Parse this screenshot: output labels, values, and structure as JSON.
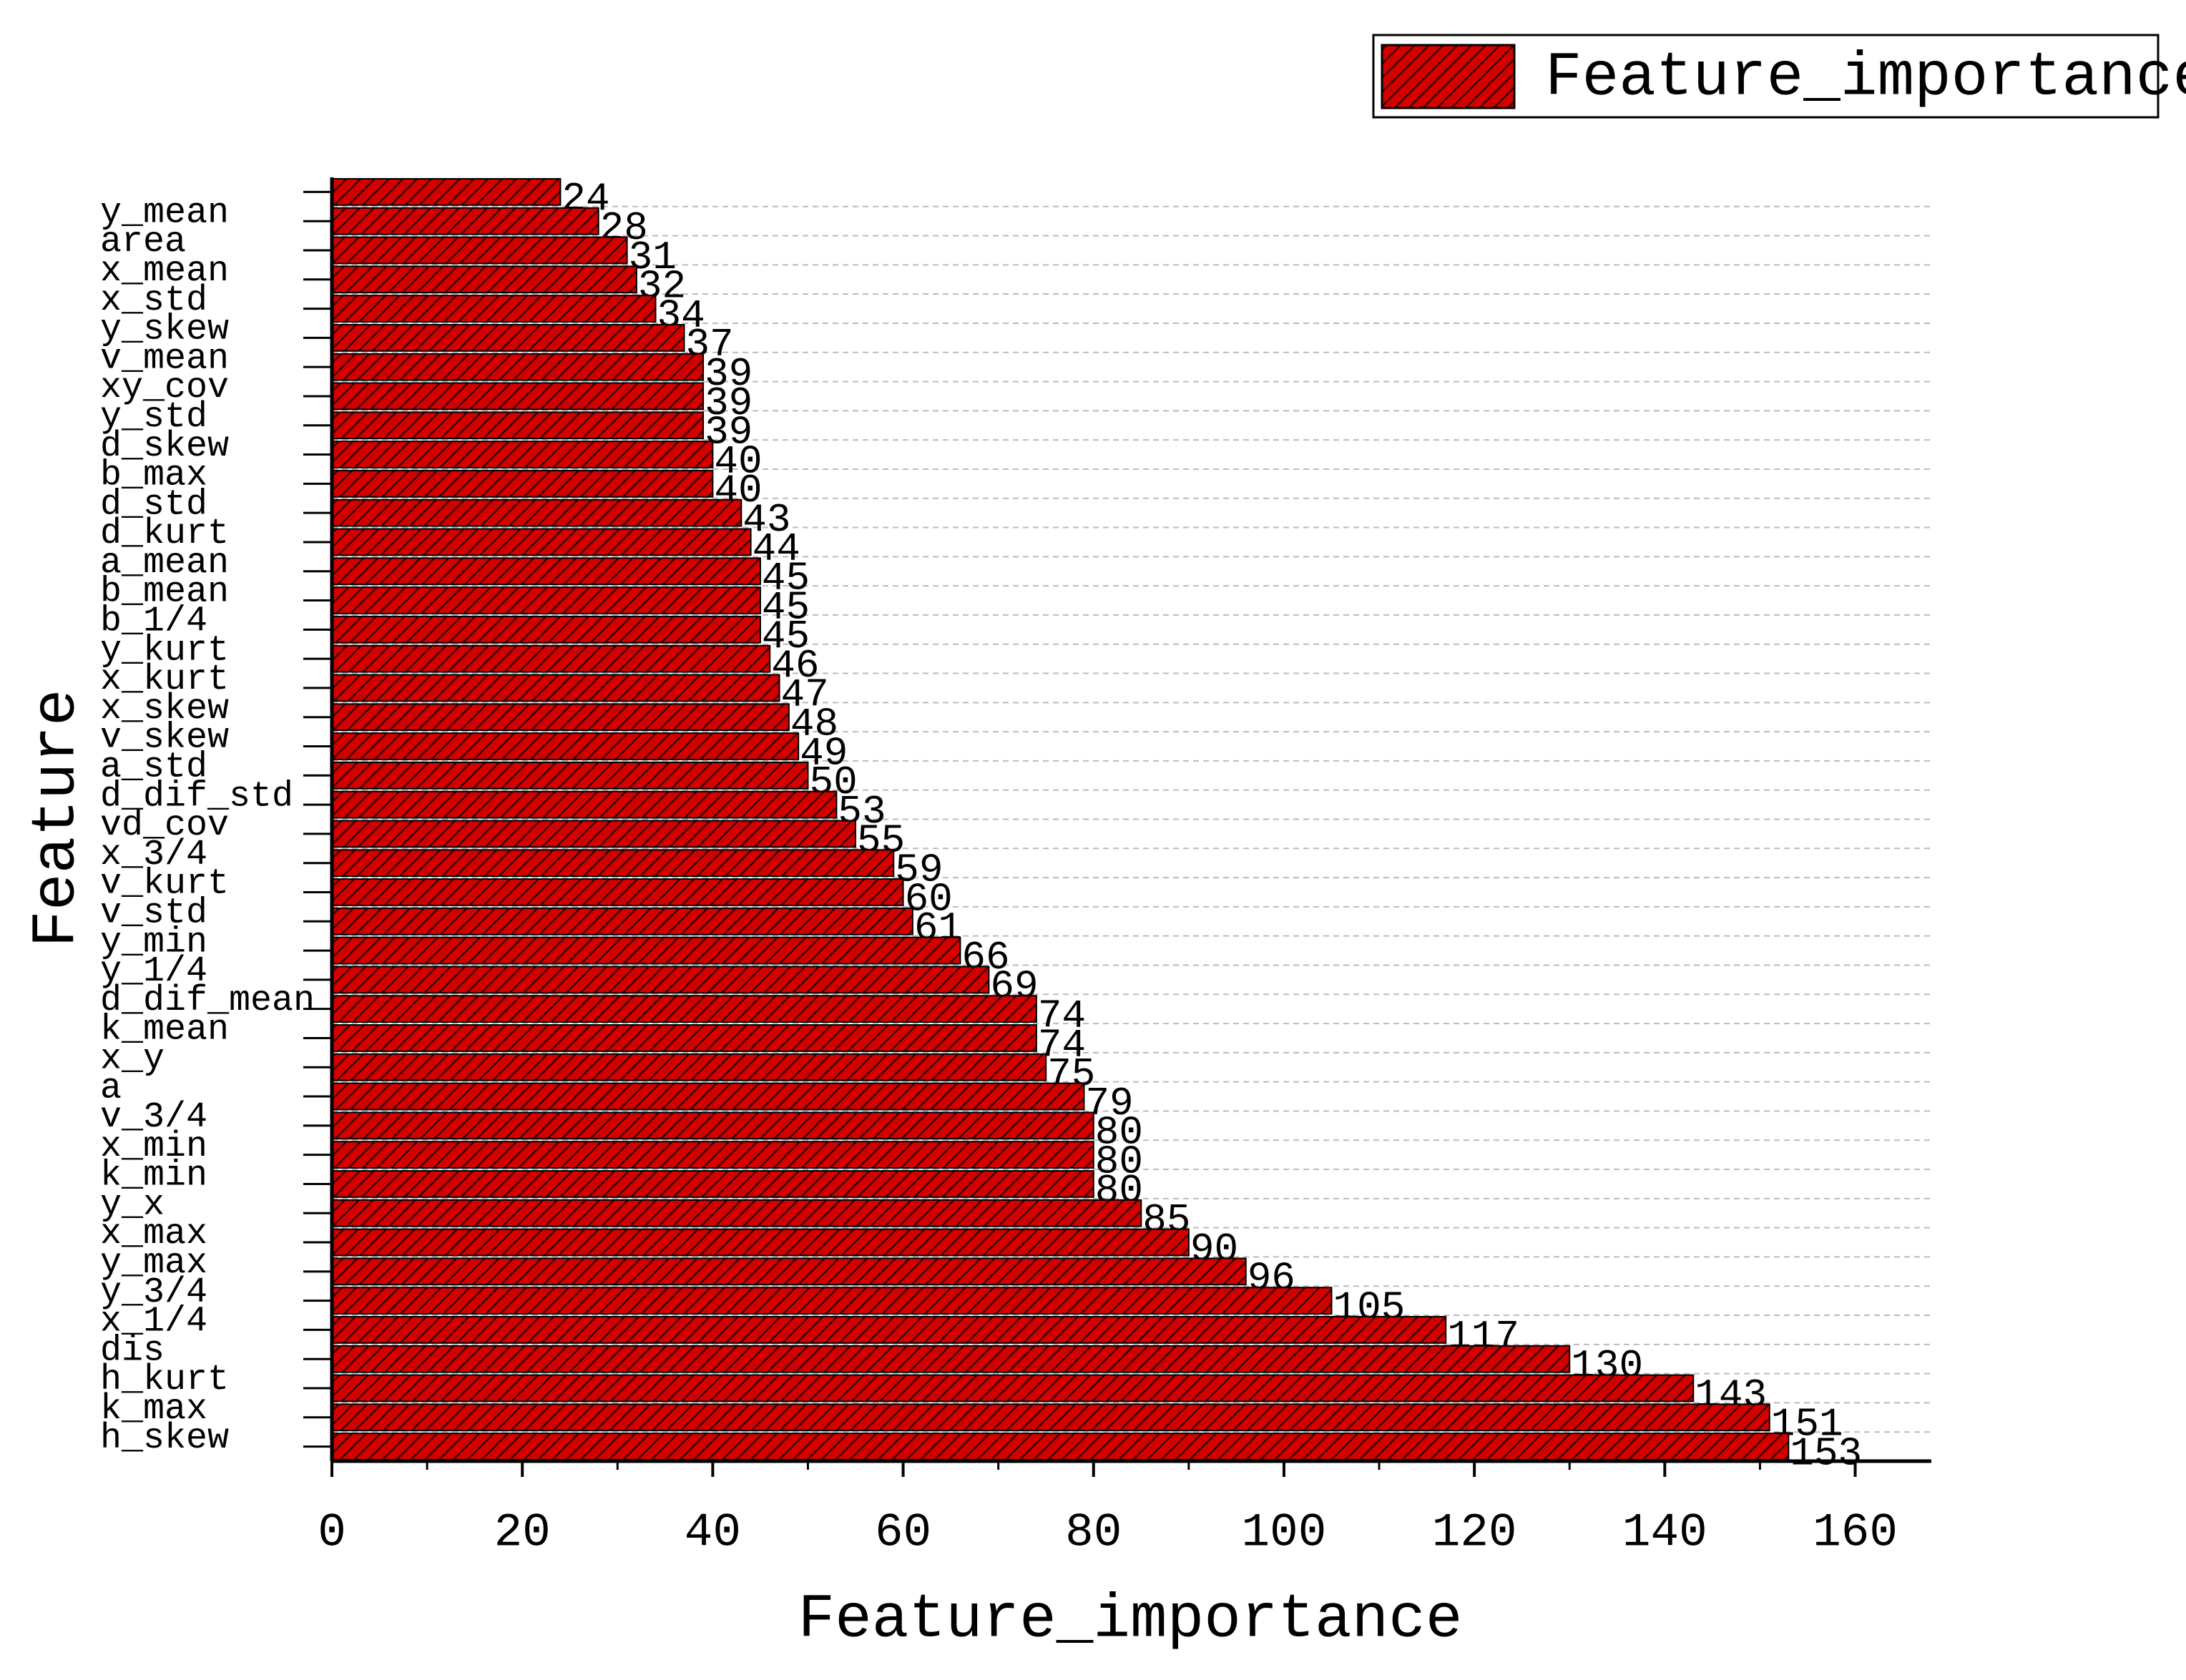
{
  "chart_data": {
    "type": "barh",
    "xlabel": "Feature_importance",
    "ylabel": "Feature",
    "categories": [
      null,
      "y_mean",
      "area",
      "x_mean",
      "x_std",
      "y_skew",
      "v_mean",
      "xy_cov",
      "y_std",
      "d_skew",
      "b_max",
      "d_std",
      "d_kurt",
      "a_mean",
      "b_mean",
      "b_1/4",
      "y_kurt",
      "x_kurt",
      "x_skew",
      "v_skew",
      "a_std",
      "d_dif_std",
      "vd_cov",
      "x_3/4",
      "v_kurt",
      "v_std",
      "y_min",
      "y_1/4",
      "d_dif_mean",
      "k_mean",
      "x_y",
      "a",
      "v_3/4",
      "x_min",
      "k_min",
      "y_x",
      "x_max",
      "y_max",
      "y_3/4",
      "x_1/4",
      "dis",
      "h_kurt",
      "k_max",
      "h_skew"
    ],
    "series": [
      {
        "name": "Feature_importance",
        "color": "#d40000",
        "values": [
          24,
          28,
          31,
          32,
          34,
          37,
          39,
          39,
          39,
          40,
          40,
          43,
          44,
          45,
          45,
          45,
          46,
          47,
          48,
          49,
          50,
          53,
          55,
          59,
          60,
          61,
          66,
          69,
          74,
          74,
          75,
          79,
          80,
          80,
          80,
          85,
          90,
          96,
          105,
          117,
          130,
          143,
          151,
          153
        ]
      }
    ],
    "xlim": [
      0,
      168
    ],
    "xticks": [
      0,
      20,
      40,
      60,
      80,
      100,
      120,
      140,
      160
    ],
    "grid": true,
    "legend": "upper right"
  }
}
